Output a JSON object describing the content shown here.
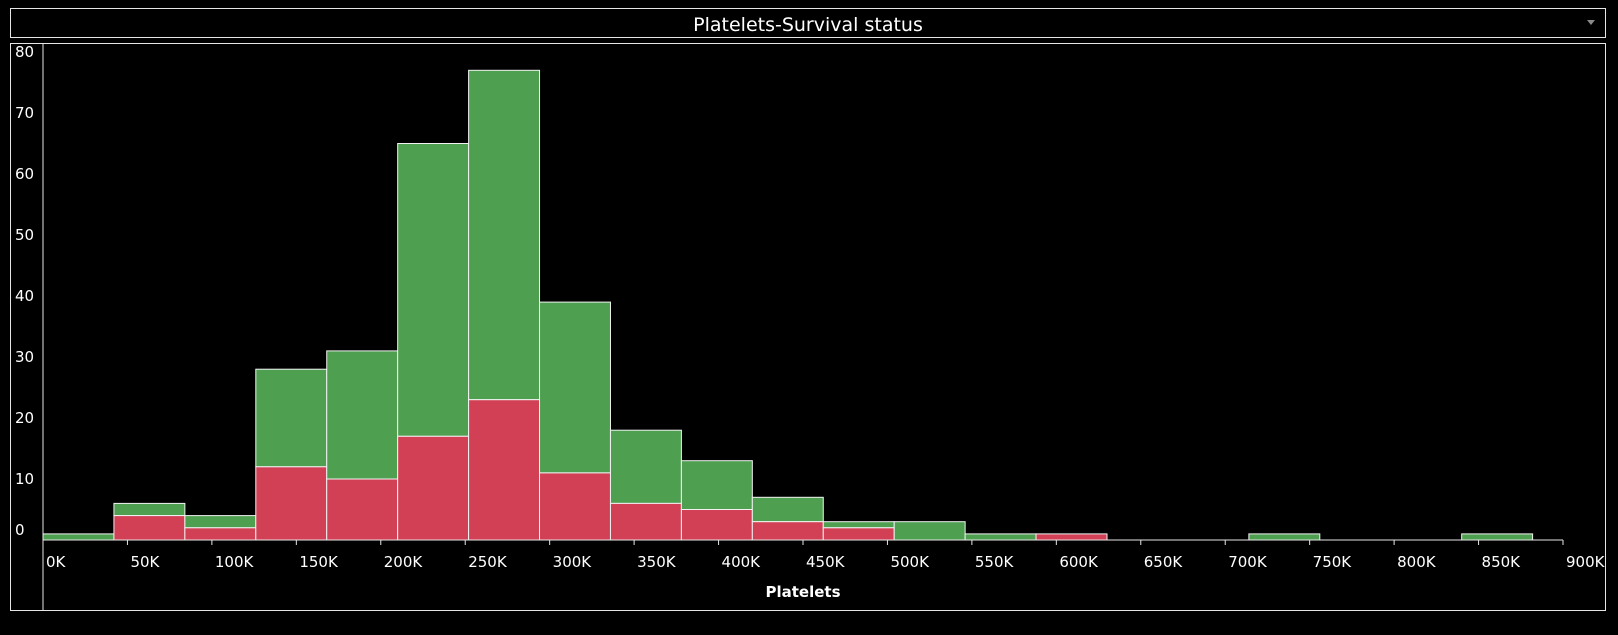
{
  "dashboard": {
    "title": "Platelets-Survival status",
    "menu_icon": "chevron-down-icon"
  },
  "chart_data": {
    "type": "bar",
    "stacked": true,
    "title": "Platelets-Survival status",
    "xlabel": "Platelets",
    "ylabel": "",
    "bin_width": 42000,
    "bin_start": 0,
    "xlim": [
      0,
      900000
    ],
    "ylim": [
      0,
      80
    ],
    "x_ticks": [
      0,
      50000,
      100000,
      150000,
      200000,
      250000,
      300000,
      350000,
      400000,
      450000,
      500000,
      550000,
      600000,
      650000,
      700000,
      750000,
      800000,
      850000,
      900000
    ],
    "x_tick_labels": [
      "0K",
      "50K",
      "100K",
      "150K",
      "200K",
      "250K",
      "300K",
      "350K",
      "400K",
      "450K",
      "500K",
      "550K",
      "600K",
      "650K",
      "700K",
      "750K",
      "800K",
      "850K",
      "900K"
    ],
    "y_ticks": [
      0,
      10,
      20,
      30,
      40,
      50,
      60,
      70,
      80
    ],
    "y_tick_labels": [
      "0",
      "10",
      "20",
      "30",
      "40",
      "50",
      "60",
      "70",
      "80"
    ],
    "grid": false,
    "legend": "none",
    "bins": [
      {
        "start": 0,
        "red": 0,
        "total": 1
      },
      {
        "start": 42000,
        "red": 4,
        "total": 6
      },
      {
        "start": 84000,
        "red": 2,
        "total": 4
      },
      {
        "start": 126000,
        "red": 12,
        "total": 28
      },
      {
        "start": 168000,
        "red": 10,
        "total": 31
      },
      {
        "start": 210000,
        "red": 17,
        "total": 65
      },
      {
        "start": 252000,
        "red": 23,
        "total": 77
      },
      {
        "start": 294000,
        "red": 11,
        "total": 39
      },
      {
        "start": 336000,
        "red": 6,
        "total": 18
      },
      {
        "start": 378000,
        "red": 5,
        "total": 13
      },
      {
        "start": 420000,
        "red": 3,
        "total": 7
      },
      {
        "start": 462000,
        "red": 2,
        "total": 3
      },
      {
        "start": 504000,
        "red": 0,
        "total": 3
      },
      {
        "start": 546000,
        "red": 0,
        "total": 1
      },
      {
        "start": 588000,
        "red": 1,
        "total": 1
      },
      {
        "start": 714000,
        "red": 0,
        "total": 1
      },
      {
        "start": 840000,
        "red": 0,
        "total": 1
      }
    ],
    "colors": {
      "red_segment": "#d14055",
      "green_segment": "#4e9f50",
      "bar_border": "#f2f2f2",
      "axis": "#e6e6e6",
      "background": "#000000"
    }
  }
}
